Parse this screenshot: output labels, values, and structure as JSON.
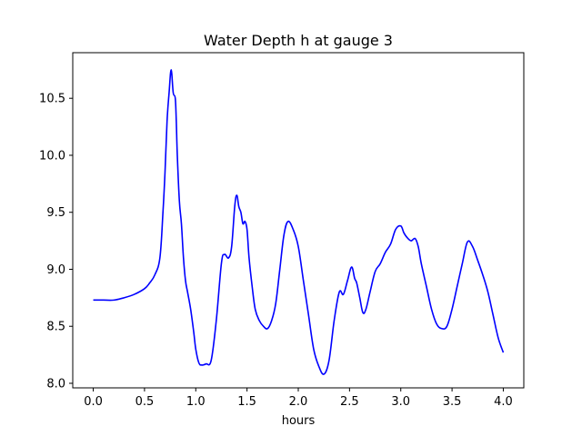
{
  "chart_data": {
    "type": "line",
    "title": "Water Depth h at gauge 3",
    "xlabel": "hours",
    "ylabel": "",
    "xlim": [
      -0.2,
      4.2
    ],
    "ylim": [
      7.96,
      10.9
    ],
    "xticks": [
      0.0,
      0.5,
      1.0,
      1.5,
      2.0,
      2.5,
      3.0,
      3.5,
      4.0
    ],
    "xtick_labels": [
      "0.0",
      "0.5",
      "1.0",
      "1.5",
      "2.0",
      "2.5",
      "3.0",
      "3.5",
      "4.0"
    ],
    "yticks": [
      8.0,
      8.5,
      9.0,
      9.5,
      10.0,
      10.5
    ],
    "ytick_labels": [
      "8.0",
      "8.5",
      "9.0",
      "9.5",
      "10.0",
      "10.5"
    ],
    "grid": false,
    "legend": "none",
    "color": "#0000ff",
    "series": [
      {
        "x": [
          0.0,
          0.1,
          0.2,
          0.3,
          0.4,
          0.5,
          0.55,
          0.6,
          0.65,
          0.68,
          0.7,
          0.72,
          0.74,
          0.76,
          0.78,
          0.8,
          0.81,
          0.82,
          0.84,
          0.86,
          0.88,
          0.9,
          0.92,
          0.95,
          0.98,
          1.0,
          1.03,
          1.06,
          1.1,
          1.15,
          1.2,
          1.25,
          1.28,
          1.32,
          1.35,
          1.38,
          1.4,
          1.42,
          1.44,
          1.46,
          1.48,
          1.5,
          1.52,
          1.55,
          1.58,
          1.62,
          1.66,
          1.7,
          1.74,
          1.78,
          1.82,
          1.86,
          1.9,
          1.95,
          2.0,
          2.05,
          2.1,
          2.15,
          2.2,
          2.25,
          2.3,
          2.35,
          2.4,
          2.44,
          2.48,
          2.52,
          2.55,
          2.57,
          2.6,
          2.63,
          2.66,
          2.7,
          2.75,
          2.8,
          2.85,
          2.9,
          2.95,
          3.0,
          3.03,
          3.06,
          3.1,
          3.14,
          3.17,
          3.2,
          3.25,
          3.3,
          3.35,
          3.4,
          3.45,
          3.5,
          3.55,
          3.6,
          3.65,
          3.7,
          3.75,
          3.8,
          3.85,
          3.9,
          3.95,
          4.0
        ],
        "y": [
          8.73,
          8.73,
          8.73,
          8.75,
          8.78,
          8.83,
          8.88,
          8.95,
          9.1,
          9.5,
          9.85,
          10.3,
          10.55,
          10.75,
          10.55,
          10.5,
          10.3,
          10.0,
          9.6,
          9.4,
          9.1,
          8.9,
          8.8,
          8.65,
          8.45,
          8.3,
          8.18,
          8.16,
          8.17,
          8.2,
          8.55,
          9.05,
          9.13,
          9.1,
          9.2,
          9.55,
          9.65,
          9.55,
          9.5,
          9.4,
          9.42,
          9.35,
          9.1,
          8.85,
          8.65,
          8.55,
          8.5,
          8.48,
          8.55,
          8.7,
          9.0,
          9.3,
          9.42,
          9.35,
          9.2,
          8.9,
          8.6,
          8.3,
          8.15,
          8.08,
          8.2,
          8.55,
          8.8,
          8.78,
          8.9,
          9.02,
          8.92,
          8.88,
          8.75,
          8.62,
          8.65,
          8.8,
          8.98,
          9.05,
          9.15,
          9.22,
          9.35,
          9.38,
          9.32,
          9.28,
          9.25,
          9.27,
          9.2,
          9.05,
          8.85,
          8.65,
          8.52,
          8.48,
          8.5,
          8.65,
          8.85,
          9.05,
          9.24,
          9.2,
          9.08,
          8.95,
          8.8,
          8.6,
          8.4,
          8.27
        ]
      }
    ]
  }
}
